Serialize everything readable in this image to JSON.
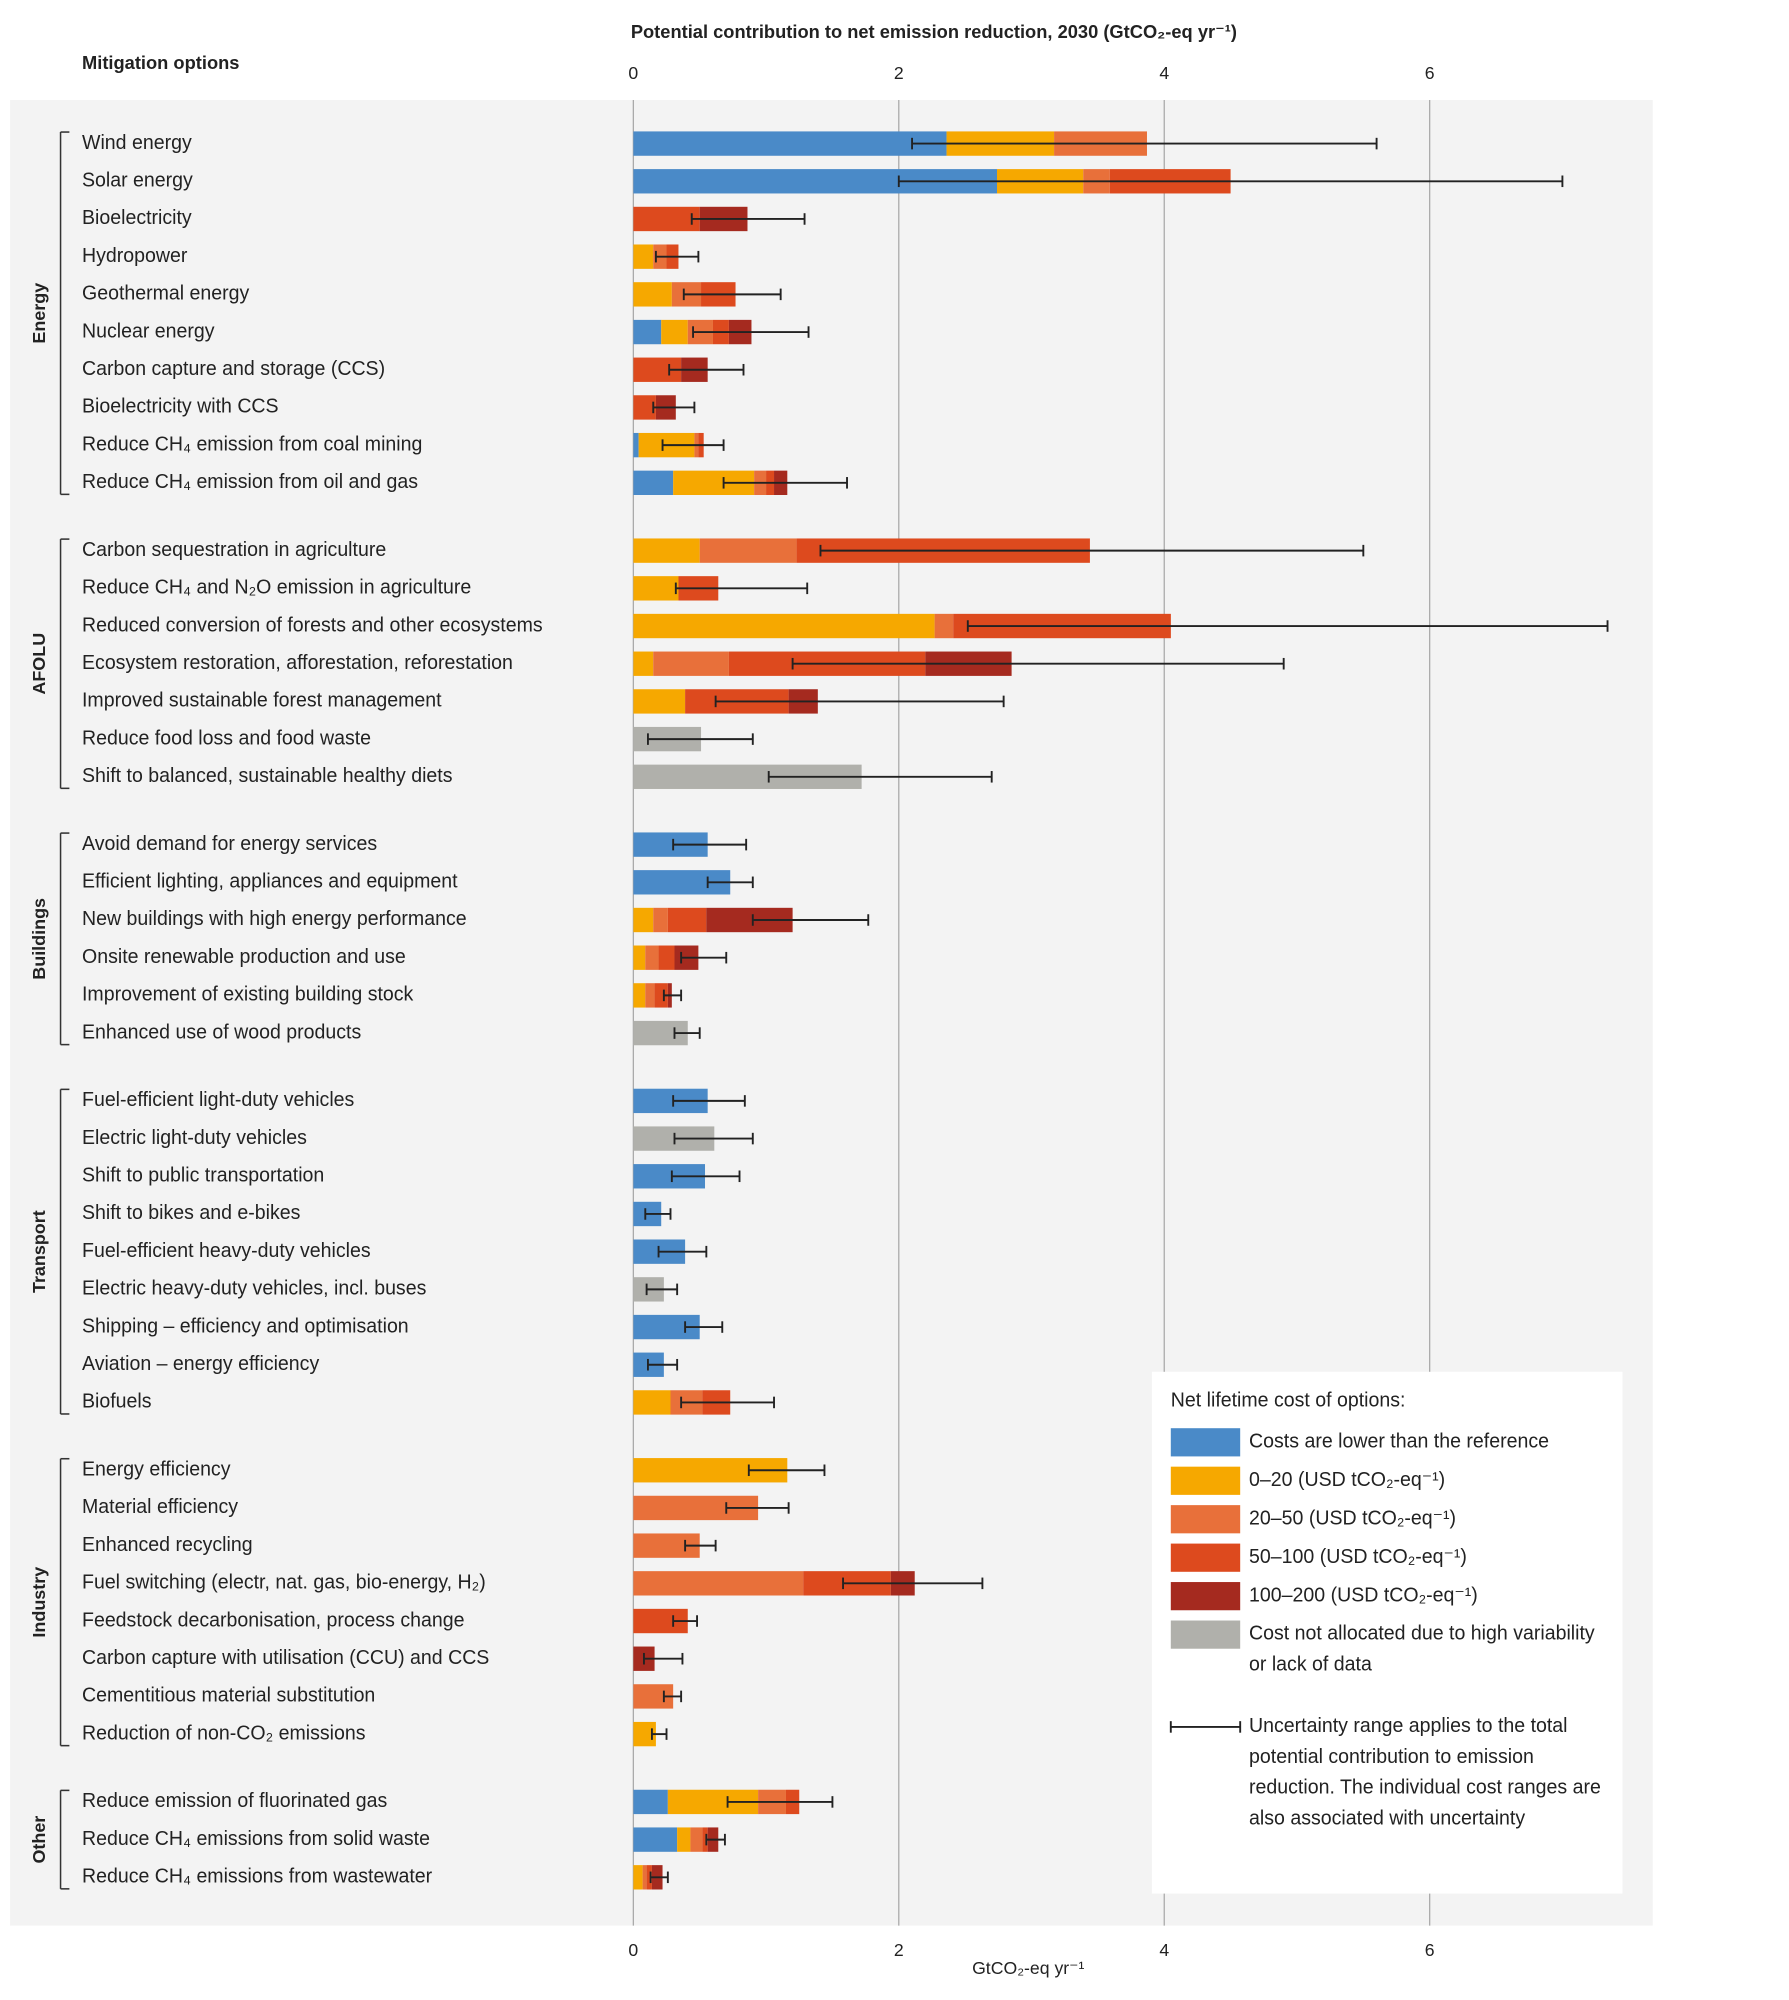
{
  "chart_data": {
    "type": "bar",
    "orientation": "horizontal",
    "stacked": true,
    "title": "Potential contribution to net emission reduction, 2030 (GtCO₂-eq yr⁻¹)",
    "xlabel": "GtCO₂-eq yr⁻¹",
    "category_header": "Mitigation options",
    "xlim": [
      0,
      7.7
    ],
    "xticks": [
      0,
      2,
      4,
      6
    ],
    "grid": true,
    "groups": [
      {
        "name": "Energy",
        "categories": [
          "Wind energy",
          "Solar energy",
          "Bioelectricity",
          "Hydropower",
          "Geothermal energy",
          "Nuclear energy",
          "Carbon capture and storage (CCS)",
          "Bioelectricity with CCS",
          "Reduce CH₄ emission from coal mining",
          "Reduce CH₄ emission from oil and gas"
        ]
      },
      {
        "name": "AFOLU",
        "categories": [
          "Carbon sequestration in agriculture",
          "Reduce CH₄ and N₂O emission in agriculture",
          "Reduced conversion of forests and other ecosystems",
          "Ecosystem restoration, afforestation, reforestation",
          "Improved sustainable forest management",
          "Reduce food loss and food waste",
          "Shift to balanced, sustainable healthy diets"
        ]
      },
      {
        "name": "Buildings",
        "categories": [
          "Avoid demand for energy services",
          "Efficient lighting, appliances and equipment",
          "New buildings with high energy performance",
          "Onsite renewable production and use",
          "Improvement of existing building stock",
          "Enhanced use of wood products"
        ]
      },
      {
        "name": "Transport",
        "categories": [
          "Fuel-efficient light-duty vehicles",
          "Electric light-duty vehicles",
          "Shift to public transportation",
          "Shift to bikes and e-bikes",
          "Fuel-efficient heavy-duty vehicles",
          "Electric heavy-duty vehicles, incl. buses",
          "Shipping – efficiency and optimisation",
          "Aviation – energy efficiency",
          "Biofuels"
        ]
      },
      {
        "name": "Industry",
        "categories": [
          "Energy efficiency",
          "Material efficiency",
          "Enhanced recycling",
          "Fuel switching (electr, nat. gas, bio-energy, H₂)",
          "Feedstock decarbonisation, process change",
          "Carbon capture with utilisation (CCU) and CCS",
          "Cementitious material substitution",
          "Reduction of non-CO₂ emissions"
        ]
      },
      {
        "name": "Other",
        "categories": [
          "Reduce emission of fluorinated gas",
          "Reduce CH₄ emissions from solid waste",
          "Reduce CH₄ emissions from wastewater"
        ]
      }
    ],
    "legend_title": "Net lifetime cost of options:",
    "series": [
      {
        "name": "Costs are lower than the reference",
        "color": "#4a8ac8",
        "values": [
          2.36,
          2.74,
          0,
          0,
          0,
          0.21,
          0,
          0,
          0.04,
          0.3,
          0,
          0,
          0,
          0,
          0,
          0,
          0,
          0.56,
          0.73,
          0,
          0,
          0,
          0,
          0.56,
          0,
          0.54,
          0.21,
          0.39,
          0,
          0.5,
          0.23,
          0,
          0,
          0,
          0,
          0,
          0,
          0,
          0,
          0,
          0.26,
          0.33,
          0
        ]
      },
      {
        "name": "0–20 (USD tCO₂-eq⁻¹)",
        "color": "#f6a800",
        "values": [
          0.81,
          0.65,
          0,
          0.15,
          0.29,
          0.2,
          0,
          0,
          0.42,
          0.61,
          0.5,
          0.34,
          2.27,
          0.15,
          0.39,
          0,
          0,
          0,
          0,
          0.15,
          0.09,
          0.09,
          0,
          0,
          0,
          0,
          0,
          0,
          0,
          0,
          0,
          0.28,
          1.16,
          0,
          0,
          0,
          0,
          0,
          0,
          0.17,
          0.68,
          0.1,
          0.07
        ]
      },
      {
        "name": "20–50 (USD tCO₂-eq⁻¹)",
        "color": "#e8703a",
        "values": [
          0.7,
          0.2,
          0,
          0.1,
          0.22,
          0.19,
          0,
          0,
          0.03,
          0.09,
          0.73,
          0,
          0.14,
          0.57,
          0,
          0,
          0,
          0,
          0,
          0.11,
          0.1,
          0.07,
          0,
          0,
          0,
          0,
          0,
          0,
          0,
          0,
          0,
          0.24,
          0,
          0.94,
          0.5,
          1.28,
          0,
          0,
          0.3,
          0,
          0.21,
          0.09,
          0.03
        ]
      },
      {
        "name": "50–100 (USD tCO₂-eq⁻¹)",
        "color": "#dd4a1e",
        "values": [
          0,
          0.91,
          0.5,
          0.09,
          0.26,
          0.12,
          0.36,
          0.17,
          0.04,
          0.06,
          2.21,
          0.3,
          1.64,
          1.48,
          0.78,
          0,
          0,
          0,
          0,
          0.29,
          0.12,
          0.1,
          0,
          0,
          0,
          0,
          0,
          0,
          0,
          0,
          0,
          0.21,
          0,
          0,
          0,
          0.66,
          0.41,
          0,
          0,
          0,
          0.1,
          0.04,
          0.04
        ]
      },
      {
        "name": "100–200 (USD tCO₂-eq⁻¹)",
        "color": "#a52a1f",
        "values": [
          0,
          0,
          0.36,
          0,
          0,
          0.17,
          0.2,
          0.15,
          0,
          0.1,
          0,
          0,
          0,
          0.65,
          0.22,
          0,
          0,
          0,
          0,
          0.65,
          0.18,
          0.03,
          0,
          0,
          0,
          0,
          0,
          0,
          0,
          0,
          0,
          0,
          0,
          0,
          0,
          0.18,
          0,
          0.16,
          0,
          0,
          0,
          0.08,
          0.08
        ]
      },
      {
        "name": "Cost not allocated due to high variability or lack of data",
        "color": "#b0b0ab",
        "values": [
          0,
          0,
          0,
          0,
          0,
          0,
          0,
          0,
          0,
          0,
          0,
          0,
          0,
          0,
          0,
          0.51,
          1.72,
          0,
          0,
          0,
          0,
          0,
          0.41,
          0,
          0.61,
          0,
          0,
          0,
          0.23,
          0,
          0,
          0,
          0,
          0,
          0,
          0,
          0,
          0,
          0,
          0,
          0,
          0,
          0
        ]
      }
    ],
    "uncertainty": {
      "name": "Uncertainty range applies to the total potential contribution to emission reduction. The individual cost ranges are also associated with uncertainty",
      "color": "#222222",
      "low": [
        2.1,
        2.0,
        0.44,
        0.17,
        0.38,
        0.45,
        0.27,
        0.15,
        0.22,
        0.68,
        1.41,
        0.32,
        2.52,
        1.2,
        0.62,
        0.11,
        1.02,
        0.3,
        0.56,
        0.9,
        0.36,
        0.23,
        0.31,
        0.3,
        0.31,
        0.29,
        0.09,
        0.19,
        0.1,
        0.39,
        0.11,
        0.36,
        0.87,
        0.7,
        0.39,
        1.58,
        0.3,
        0.08,
        0.23,
        0.14,
        0.71,
        0.55,
        0.13
      ],
      "high": [
        5.6,
        7.0,
        1.29,
        0.49,
        1.11,
        1.32,
        0.83,
        0.46,
        0.68,
        1.61,
        5.5,
        1.31,
        7.34,
        4.9,
        2.79,
        0.9,
        2.7,
        0.85,
        0.9,
        1.77,
        0.7,
        0.36,
        0.5,
        0.84,
        0.9,
        0.8,
        0.28,
        0.55,
        0.33,
        0.67,
        0.33,
        1.06,
        1.44,
        1.17,
        0.62,
        2.63,
        0.48,
        0.37,
        0.36,
        0.25,
        1.5,
        0.69,
        0.26
      ]
    }
  }
}
